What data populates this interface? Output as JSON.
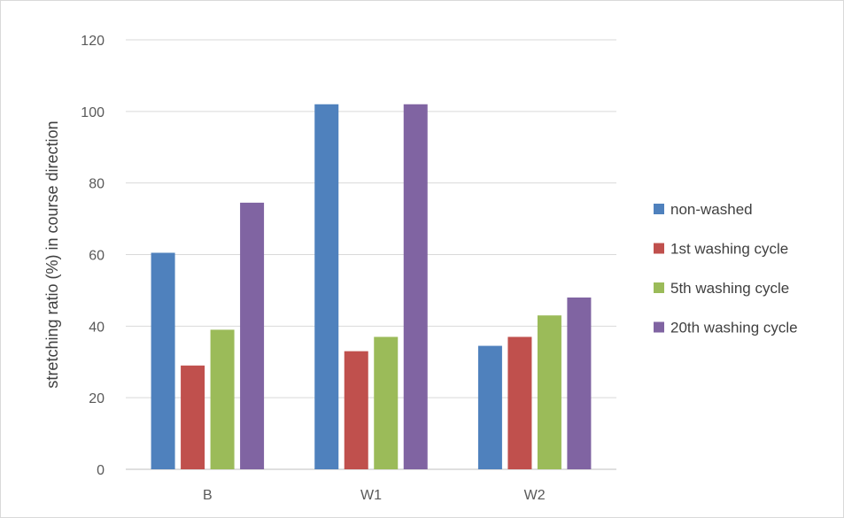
{
  "chart_data": {
    "type": "bar",
    "title": "",
    "xlabel": "",
    "ylabel": "stretching ratio (%) in course direction",
    "categories": [
      "B",
      "W1",
      "W2"
    ],
    "ylim": [
      0,
      120
    ],
    "yticks": [
      0,
      20,
      40,
      60,
      80,
      100,
      120
    ],
    "grid": true,
    "legend_position": "right",
    "series": [
      {
        "name": "non-washed",
        "color": "#4f81bd",
        "values": [
          60.5,
          102,
          34.5
        ]
      },
      {
        "name": "1st washing cycle",
        "color": "#c0504d",
        "values": [
          29,
          33,
          37
        ]
      },
      {
        "name": "5th washing cycle",
        "color": "#9bbb59",
        "values": [
          39,
          37,
          43
        ]
      },
      {
        "name": "20th washing cycle",
        "color": "#8064a2",
        "values": [
          74.5,
          102,
          48
        ]
      }
    ]
  }
}
